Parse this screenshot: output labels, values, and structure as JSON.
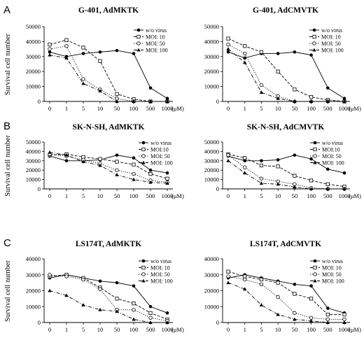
{
  "y_label": "Survival cell number",
  "x_unit": "(μM)",
  "rows": [
    {
      "letter": "A",
      "ylim": [
        0,
        50000
      ],
      "yticks": [
        "0",
        "10000",
        "20000",
        "30000",
        "40000",
        "50000"
      ]
    },
    {
      "letter": "B",
      "ylim": [
        0,
        50000
      ],
      "yticks": [
        "0",
        "10000",
        "20000",
        "30000",
        "40000",
        "50000"
      ]
    },
    {
      "letter": "C",
      "ylim": [
        0,
        40000
      ],
      "yticks": [
        "0",
        "10000",
        "20000",
        "30000",
        "40000"
      ]
    }
  ],
  "chart_data": [
    {
      "type": "line",
      "title": "G-401, AdMKTK",
      "x": [
        "0",
        "1",
        "5",
        "10",
        "50",
        "100",
        "500",
        "1000"
      ],
      "legend_position": "top-right",
      "ylim": [
        0,
        50000
      ],
      "series": [
        {
          "name": "w/o virus",
          "marker": "filled-circle",
          "line": "solid",
          "values": [
            33000,
            30000,
            32000,
            33000,
            34000,
            32000,
            9000,
            2000
          ]
        },
        {
          "name": "MOI: 10",
          "marker": "open-square",
          "line": "dashed",
          "values": [
            38000,
            41000,
            36000,
            27000,
            5000,
            1500,
            0,
            0
          ]
        },
        {
          "name": "MOI: 50",
          "marker": "open-circle",
          "line": "dotted",
          "values": [
            35000,
            37000,
            15000,
            8000,
            2000,
            0,
            0,
            0
          ]
        },
        {
          "name": "MOI: 100",
          "marker": "filled-triangle",
          "line": "dash-dot",
          "values": [
            31000,
            29000,
            12000,
            7000,
            0,
            0,
            0,
            0
          ]
        }
      ]
    },
    {
      "type": "line",
      "title": "G-401, AdCMVTK",
      "x": [
        "0",
        "1",
        "5",
        "10",
        "50",
        "100",
        "500",
        "1000"
      ],
      "legend_position": "top-right",
      "ylim": [
        0,
        50000
      ],
      "series": [
        {
          "name": "w/o  virus",
          "marker": "filled-circle",
          "line": "solid",
          "values": [
            33000,
            29000,
            32000,
            32000,
            33000,
            31000,
            9000,
            2000
          ]
        },
        {
          "name": "MOI: 10",
          "marker": "open-square",
          "line": "dashed",
          "values": [
            42000,
            37000,
            33000,
            20000,
            8000,
            3000,
            1000,
            0
          ]
        },
        {
          "name": "MOI: 50",
          "marker": "open-circle",
          "line": "dotted",
          "values": [
            38000,
            32000,
            11000,
            3500,
            0,
            0,
            0,
            0
          ]
        },
        {
          "name": "MOI: 100",
          "marker": "filled-triangle",
          "line": "dash-dot",
          "values": [
            35000,
            26000,
            6000,
            2000,
            0,
            0,
            0,
            0
          ]
        }
      ]
    },
    {
      "type": "line",
      "title": "SK-N-SH, AdMKTK",
      "x": [
        "0",
        "1",
        "5",
        "10",
        "50",
        "100",
        "500",
        "1000"
      ],
      "legend_position": "top-right",
      "ylim": [
        0,
        50000
      ],
      "series": [
        {
          "name": "w/o  virus",
          "marker": "filled-circle",
          "line": "solid",
          "values": [
            35000,
            30000,
            30000,
            31000,
            36000,
            33000,
            20000,
            17000
          ]
        },
        {
          "name": "MOI:10",
          "marker": "open-square",
          "line": "dashed",
          "values": [
            36000,
            37000,
            34000,
            32000,
            29000,
            26000,
            16000,
            11000
          ]
        },
        {
          "name": "MOI: 50",
          "marker": "open-circle",
          "line": "dotted",
          "values": [
            37000,
            35000,
            31000,
            27000,
            20000,
            16000,
            9000,
            7000
          ]
        },
        {
          "name": "MOI: 100",
          "marker": "filled-triangle",
          "line": "dash-dot",
          "values": [
            39000,
            36000,
            29000,
            25000,
            15000,
            10000,
            7000,
            6000
          ]
        }
      ]
    },
    {
      "type": "line",
      "title": "SK-N-SH, AdCMVTK",
      "x": [
        "0",
        "1",
        "5",
        "10",
        "50",
        "100",
        "500",
        "1000"
      ],
      "legend_position": "top-right",
      "ylim": [
        0,
        50000
      ],
      "series": [
        {
          "name": "w/o  virus",
          "marker": "filled-circle",
          "line": "solid",
          "values": [
            35000,
            30000,
            30000,
            31000,
            36000,
            32000,
            21000,
            17000
          ]
        },
        {
          "name": "MOI:10",
          "marker": "open-square",
          "line": "dashed",
          "values": [
            37000,
            33000,
            25000,
            24000,
            14000,
            9000,
            5000,
            2500
          ]
        },
        {
          "name": "MOI: 50",
          "marker": "open-circle",
          "line": "dotted",
          "values": [
            36000,
            23000,
            11000,
            8000,
            5000,
            1000,
            0,
            0
          ]
        },
        {
          "name": "MOI: 100",
          "marker": "filled-triangle",
          "line": "dash-dot",
          "values": [
            30000,
            17000,
            6000,
            5000,
            2000,
            0,
            0,
            0
          ]
        }
      ]
    },
    {
      "type": "line",
      "title": "LS174T, AdMKTK",
      "x": [
        "0",
        "1",
        "5",
        "10",
        "50",
        "100",
        "500",
        "1000"
      ],
      "legend_position": "top-right",
      "ylim": [
        0,
        40000
      ],
      "series": [
        {
          "name": "w/o  virus",
          "marker": "filled-circle",
          "line": "solid",
          "values": [
            28000,
            30000,
            28000,
            26000,
            25000,
            23000,
            10000,
            6000
          ]
        },
        {
          "name": "MOI: 10",
          "marker": "open-square",
          "line": "dashed",
          "values": [
            29000,
            30000,
            28000,
            22000,
            15000,
            12000,
            6000,
            2000
          ]
        },
        {
          "name": "MOI: 50",
          "marker": "open-circle",
          "line": "dotted",
          "values": [
            30000,
            29000,
            27000,
            21000,
            8000,
            8000,
            3000,
            1000
          ]
        },
        {
          "name": "MOI: 100",
          "marker": "filled-triangle",
          "line": "dash-dot",
          "values": [
            20000,
            17000,
            11000,
            8000,
            7000,
            2000,
            0,
            0
          ]
        }
      ]
    },
    {
      "type": "line",
      "title": "LS174T, AdCMVTK",
      "x": [
        "0",
        "1",
        "5",
        "10",
        "50",
        "100",
        "500",
        "1000"
      ],
      "legend_position": "top-right",
      "ylim": [
        0,
        40000
      ],
      "series": [
        {
          "name": "w/o  virus",
          "marker": "filled-circle",
          "line": "solid",
          "values": [
            28000,
            30000,
            28000,
            26000,
            24000,
            23000,
            9000,
            6000
          ]
        },
        {
          "name": "MOI: 10",
          "marker": "open-square",
          "line": "dashed",
          "values": [
            32000,
            29000,
            27000,
            25000,
            18000,
            15000,
            5000,
            5000
          ]
        },
        {
          "name": "MOI: 50",
          "marker": "open-circle",
          "line": "dotted",
          "values": [
            29000,
            27000,
            24000,
            16000,
            6000,
            3000,
            2000,
            2000
          ]
        },
        {
          "name": "MOI: 100",
          "marker": "filled-triangle",
          "line": "dash-dot",
          "values": [
            25000,
            21000,
            11000,
            5000,
            2000,
            1000,
            0,
            0
          ]
        }
      ]
    }
  ]
}
